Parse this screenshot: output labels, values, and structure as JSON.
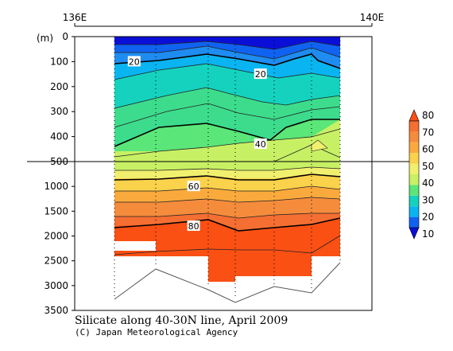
{
  "chart_data": {
    "type": "contour",
    "title": "Silicate along 40-30N line, April 2009",
    "credit": "(C) Japan Meteorological Agency",
    "ylabel_unit": "(m)",
    "x_tick_labels": [
      "136E",
      "140E"
    ],
    "y_ticks_upper": [
      0,
      100,
      200,
      300,
      400,
      500
    ],
    "y_ticks_lower": [
      1000,
      1500,
      2000,
      2500,
      3000,
      3500
    ],
    "y_break_depth": 500,
    "colorbar": {
      "levels": [
        10,
        20,
        30,
        40,
        50,
        60,
        70,
        80
      ],
      "colors": [
        "#0a0fd8",
        "#1063f0",
        "#0ab4f0",
        "#14d2be",
        "#5ae678",
        "#c8f064",
        "#f0f06e",
        "#fad24b",
        "#faaa3c",
        "#f58c3c",
        "#f56e32",
        "#fa5014"
      ],
      "tick_labels": [
        "10",
        "20",
        "30",
        "40",
        "50",
        "60",
        "70",
        "80"
      ]
    },
    "contour_labels": [
      {
        "value": "20",
        "lon": 136.8,
        "depth": 100
      },
      {
        "value": "20",
        "lon": 138.5,
        "depth": 150
      },
      {
        "value": "40",
        "lon": 138.5,
        "depth": 430
      },
      {
        "value": "60",
        "lon": 137.6,
        "depth": 1000
      },
      {
        "value": "80",
        "lon": 137.6,
        "depth": 1800
      }
    ]
  }
}
